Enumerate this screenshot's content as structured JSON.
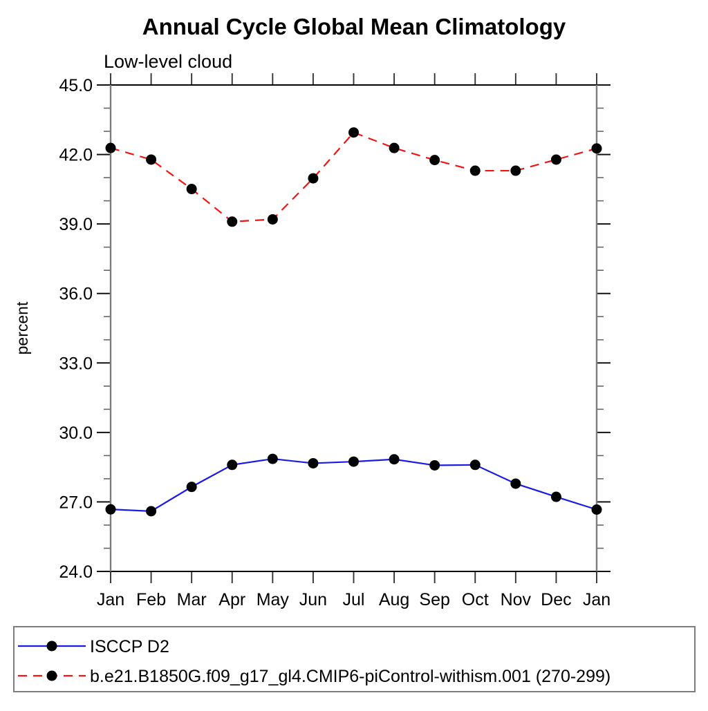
{
  "chart_data": {
    "type": "line",
    "title": "Annual Cycle Global Mean Climatology",
    "subtitle": "Low-level cloud",
    "ylabel": "percent",
    "xlabel": "",
    "categories": [
      "Jan",
      "Feb",
      "Mar",
      "Apr",
      "May",
      "Jun",
      "Jul",
      "Aug",
      "Sep",
      "Oct",
      "Nov",
      "Dec",
      "Jan"
    ],
    "ylim": [
      24,
      45
    ],
    "ytick_step_major": 3,
    "ytick_step_minor": 1,
    "ytick_labels": [
      "24.0",
      "27.0",
      "30.0",
      "33.0",
      "36.0",
      "39.0",
      "42.0",
      "45.0"
    ],
    "grid": false,
    "legend_position": "bottom-left-box",
    "series": [
      {
        "name": "ISCCP D2",
        "color": "#1a1ae6",
        "line_style": "solid",
        "marker": "filled-circle",
        "marker_color": "#000000",
        "values": [
          26.68,
          26.6,
          27.65,
          28.6,
          28.86,
          28.67,
          28.74,
          28.84,
          28.58,
          28.6,
          27.79,
          27.22,
          26.67
        ]
      },
      {
        "name": "b.e21.B1850G.f09_g17_gl4.CMIP6-piControl-withism.001 (270-299)",
        "color": "#f21414",
        "line_style": "dashed",
        "marker": "filled-circle",
        "marker_color": "#000000",
        "values": [
          42.28,
          41.78,
          40.51,
          39.1,
          39.2,
          40.97,
          42.95,
          42.28,
          41.76,
          41.3,
          41.3,
          41.78,
          42.26
        ]
      }
    ],
    "axis_colors": {
      "horizontal_frame": "#000000",
      "vertical_frame": "#7d7d7d",
      "major_tick": "#111111",
      "minor_tick": "#666666",
      "month_tick": "#333333"
    }
  }
}
